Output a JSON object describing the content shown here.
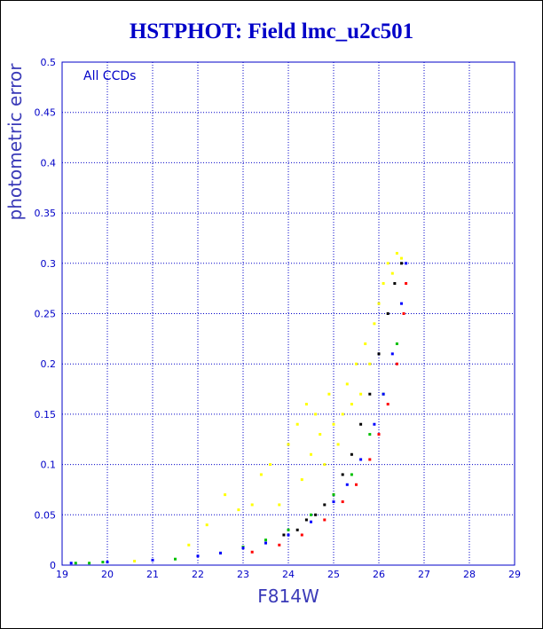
{
  "chart_data": {
    "type": "scatter",
    "title": "HSTPHOT: Field lmc_u2c501",
    "xlabel": "F814W",
    "ylabel": "photometric error",
    "legend_text": "All CCDs",
    "xlim": [
      19,
      29
    ],
    "ylim": [
      0,
      0.5
    ],
    "xticks": [
      "19",
      "20",
      "21",
      "22",
      "23",
      "24",
      "25",
      "26",
      "27",
      "28",
      "29"
    ],
    "yticks": [
      "0",
      "0.05",
      "0.1",
      "0.15",
      "0.2",
      "0.25",
      "0.3",
      "0.35",
      "0.4",
      "0.45",
      "0.5"
    ],
    "grid": true,
    "colors": {
      "title": "#0000c8",
      "axis": "#0000c8",
      "grid": "#0000c8"
    },
    "series": [
      {
        "color": "#ffff00",
        "points": [
          [
            20.6,
            0.004
          ],
          [
            21.8,
            0.02
          ],
          [
            22.2,
            0.04
          ],
          [
            22.6,
            0.07
          ],
          [
            22.9,
            0.055
          ],
          [
            23.2,
            0.06
          ],
          [
            23.4,
            0.09
          ],
          [
            23.6,
            0.1
          ],
          [
            23.8,
            0.06
          ],
          [
            24.0,
            0.12
          ],
          [
            24.2,
            0.14
          ],
          [
            24.3,
            0.085
          ],
          [
            24.4,
            0.16
          ],
          [
            24.5,
            0.11
          ],
          [
            24.6,
            0.15
          ],
          [
            24.7,
            0.13
          ],
          [
            24.8,
            0.1
          ],
          [
            24.9,
            0.17
          ],
          [
            25.0,
            0.14
          ],
          [
            25.1,
            0.12
          ],
          [
            25.2,
            0.15
          ],
          [
            25.3,
            0.18
          ],
          [
            25.4,
            0.16
          ],
          [
            25.5,
            0.2
          ],
          [
            25.6,
            0.17
          ],
          [
            25.7,
            0.22
          ],
          [
            25.8,
            0.2
          ],
          [
            25.9,
            0.24
          ],
          [
            26.0,
            0.26
          ],
          [
            26.1,
            0.28
          ],
          [
            26.2,
            0.3
          ],
          [
            26.3,
            0.29
          ],
          [
            26.4,
            0.31
          ],
          [
            26.5,
            0.305
          ]
        ]
      },
      {
        "color": "#000000",
        "points": [
          [
            23.5,
            0.022
          ],
          [
            23.9,
            0.03
          ],
          [
            24.2,
            0.035
          ],
          [
            24.4,
            0.045
          ],
          [
            24.6,
            0.05
          ],
          [
            24.8,
            0.06
          ],
          [
            25.0,
            0.07
          ],
          [
            25.2,
            0.09
          ],
          [
            25.4,
            0.11
          ],
          [
            25.6,
            0.14
          ],
          [
            25.8,
            0.17
          ],
          [
            26.0,
            0.21
          ],
          [
            26.2,
            0.25
          ],
          [
            26.35,
            0.28
          ],
          [
            26.5,
            0.3
          ]
        ]
      },
      {
        "color": "#00c000",
        "points": [
          [
            19.3,
            0.002
          ],
          [
            19.6,
            0.002
          ],
          [
            19.9,
            0.003
          ],
          [
            21.5,
            0.006
          ],
          [
            22.5,
            0.012
          ],
          [
            23.0,
            0.018
          ],
          [
            23.5,
            0.025
          ],
          [
            24.0,
            0.035
          ],
          [
            24.5,
            0.05
          ],
          [
            25.0,
            0.07
          ],
          [
            25.4,
            0.09
          ],
          [
            25.8,
            0.13
          ],
          [
            26.1,
            0.17
          ],
          [
            26.4,
            0.22
          ]
        ]
      },
      {
        "color": "#0000ff",
        "points": [
          [
            19.2,
            0.002
          ],
          [
            20.0,
            0.003
          ],
          [
            21.0,
            0.005
          ],
          [
            22.0,
            0.009
          ],
          [
            22.5,
            0.012
          ],
          [
            23.0,
            0.017
          ],
          [
            23.5,
            0.022
          ],
          [
            24.0,
            0.03
          ],
          [
            24.5,
            0.043
          ],
          [
            25.0,
            0.063
          ],
          [
            25.3,
            0.08
          ],
          [
            25.6,
            0.105
          ],
          [
            25.9,
            0.14
          ],
          [
            26.1,
            0.17
          ],
          [
            26.3,
            0.21
          ],
          [
            26.5,
            0.26
          ],
          [
            26.6,
            0.3
          ]
        ]
      },
      {
        "color": "#ff0000",
        "points": [
          [
            23.2,
            0.013
          ],
          [
            23.8,
            0.02
          ],
          [
            24.3,
            0.03
          ],
          [
            24.8,
            0.045
          ],
          [
            25.2,
            0.063
          ],
          [
            25.5,
            0.08
          ],
          [
            25.8,
            0.105
          ],
          [
            26.0,
            0.13
          ],
          [
            26.2,
            0.16
          ],
          [
            26.4,
            0.2
          ],
          [
            26.55,
            0.25
          ],
          [
            26.6,
            0.28
          ]
        ]
      }
    ]
  }
}
